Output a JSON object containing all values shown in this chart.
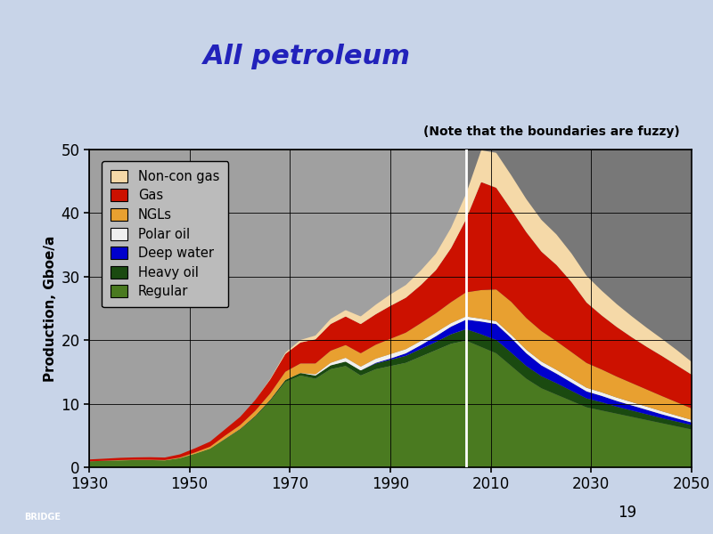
{
  "title": "All petroleum",
  "note": "(Note that the boundaries are fuzzy)",
  "ylabel": "Production, Gboe/a",
  "background_color": "#c8d4e8",
  "plot_bg_left": "#a0a0a0",
  "plot_bg_right": "#787878",
  "xlim": [
    1930,
    2050
  ],
  "ylim": [
    0,
    50
  ],
  "yticks": [
    0,
    10,
    20,
    30,
    40,
    50
  ],
  "xticks": [
    1930,
    1950,
    1970,
    1990,
    2010,
    2030,
    2050
  ],
  "vline_x": 2005,
  "title_color": "#2222bb",
  "title_fontsize": 22,
  "layer_names": [
    "Regular",
    "Heavy oil",
    "Deep water",
    "Polar oil",
    "NGLs",
    "Gas",
    "Non-con gas"
  ],
  "layer_colors": [
    "#4a7a20",
    "#1a4a10",
    "#0000cc",
    "#f0f0f0",
    "#e8a030",
    "#cc1100",
    "#f5d9a8"
  ],
  "years": [
    1930,
    1933,
    1936,
    1939,
    1942,
    1945,
    1948,
    1951,
    1954,
    1957,
    1960,
    1963,
    1966,
    1969,
    1972,
    1975,
    1978,
    1981,
    1984,
    1987,
    1990,
    1993,
    1996,
    1999,
    2002,
    2005,
    2008,
    2011,
    2014,
    2017,
    2020,
    2023,
    2026,
    2029,
    2032,
    2035,
    2038,
    2041,
    2044,
    2047,
    2050
  ],
  "Regular": [
    1.0,
    1.1,
    1.15,
    1.2,
    1.2,
    1.15,
    1.5,
    2.2,
    3.0,
    4.5,
    6.0,
    8.0,
    10.5,
    13.5,
    14.5,
    14.0,
    15.5,
    16.0,
    14.5,
    15.5,
    16.0,
    16.5,
    17.5,
    18.5,
    19.5,
    20.0,
    19.0,
    18.0,
    16.0,
    14.0,
    12.5,
    11.5,
    10.5,
    9.5,
    9.0,
    8.5,
    8.0,
    7.5,
    7.0,
    6.5,
    6.0
  ],
  "Heavy oil": [
    0.0,
    0.0,
    0.0,
    0.0,
    0.0,
    0.0,
    0.0,
    0.0,
    0.0,
    0.05,
    0.1,
    0.15,
    0.2,
    0.3,
    0.4,
    0.5,
    0.6,
    0.7,
    0.8,
    0.9,
    1.0,
    1.1,
    1.2,
    1.3,
    1.5,
    1.8,
    2.0,
    2.1,
    2.1,
    2.0,
    1.9,
    1.8,
    1.6,
    1.4,
    1.3,
    1.1,
    1.0,
    0.9,
    0.8,
    0.75,
    0.7
  ],
  "Deep water": [
    0.0,
    0.0,
    0.0,
    0.0,
    0.0,
    0.0,
    0.0,
    0.0,
    0.0,
    0.0,
    0.0,
    0.0,
    0.0,
    0.0,
    0.0,
    0.0,
    0.0,
    0.0,
    0.0,
    0.1,
    0.2,
    0.4,
    0.6,
    0.9,
    1.2,
    1.5,
    2.0,
    2.5,
    2.3,
    2.0,
    1.7,
    1.5,
    1.3,
    1.1,
    1.0,
    0.9,
    0.8,
    0.7,
    0.6,
    0.5,
    0.4
  ],
  "Polar oil": [
    0.0,
    0.0,
    0.0,
    0.0,
    0.0,
    0.0,
    0.0,
    0.0,
    0.0,
    0.0,
    0.0,
    0.0,
    0.0,
    0.0,
    0.0,
    0.2,
    0.4,
    0.6,
    0.6,
    0.65,
    0.7,
    0.65,
    0.65,
    0.6,
    0.55,
    0.5,
    0.45,
    0.45,
    0.5,
    0.55,
    0.6,
    0.6,
    0.6,
    0.58,
    0.56,
    0.54,
    0.52,
    0.5,
    0.48,
    0.44,
    0.4
  ],
  "NGLs": [
    0.0,
    0.0,
    0.05,
    0.05,
    0.05,
    0.05,
    0.1,
    0.2,
    0.3,
    0.5,
    0.6,
    0.8,
    1.0,
    1.3,
    1.5,
    1.7,
    1.9,
    2.0,
    2.1,
    2.2,
    2.4,
    2.6,
    2.8,
    3.0,
    3.3,
    3.8,
    4.5,
    5.0,
    5.2,
    5.0,
    4.8,
    4.5,
    4.2,
    3.9,
    3.6,
    3.3,
    3.0,
    2.7,
    2.4,
    2.1,
    1.8
  ],
  "Gas": [
    0.3,
    0.32,
    0.35,
    0.37,
    0.4,
    0.4,
    0.5,
    0.65,
    0.8,
    1.0,
    1.3,
    1.7,
    2.2,
    2.8,
    3.3,
    3.8,
    4.2,
    4.5,
    4.6,
    4.8,
    5.2,
    5.5,
    6.0,
    6.8,
    8.5,
    11.5,
    17.0,
    16.0,
    14.5,
    13.5,
    12.5,
    12.0,
    11.0,
    9.5,
    8.5,
    7.8,
    7.2,
    6.7,
    6.3,
    5.8,
    5.3
  ],
  "Non-con gas": [
    0.0,
    0.0,
    0.0,
    0.0,
    0.0,
    0.0,
    0.0,
    0.0,
    0.0,
    0.0,
    0.0,
    0.0,
    0.1,
    0.2,
    0.4,
    0.6,
    0.8,
    1.0,
    1.2,
    1.5,
    1.8,
    2.0,
    2.3,
    2.6,
    3.2,
    4.0,
    5.0,
    5.5,
    5.4,
    5.2,
    5.0,
    4.8,
    4.5,
    4.2,
    3.9,
    3.6,
    3.3,
    3.0,
    2.7,
    2.4,
    2.0
  ]
}
